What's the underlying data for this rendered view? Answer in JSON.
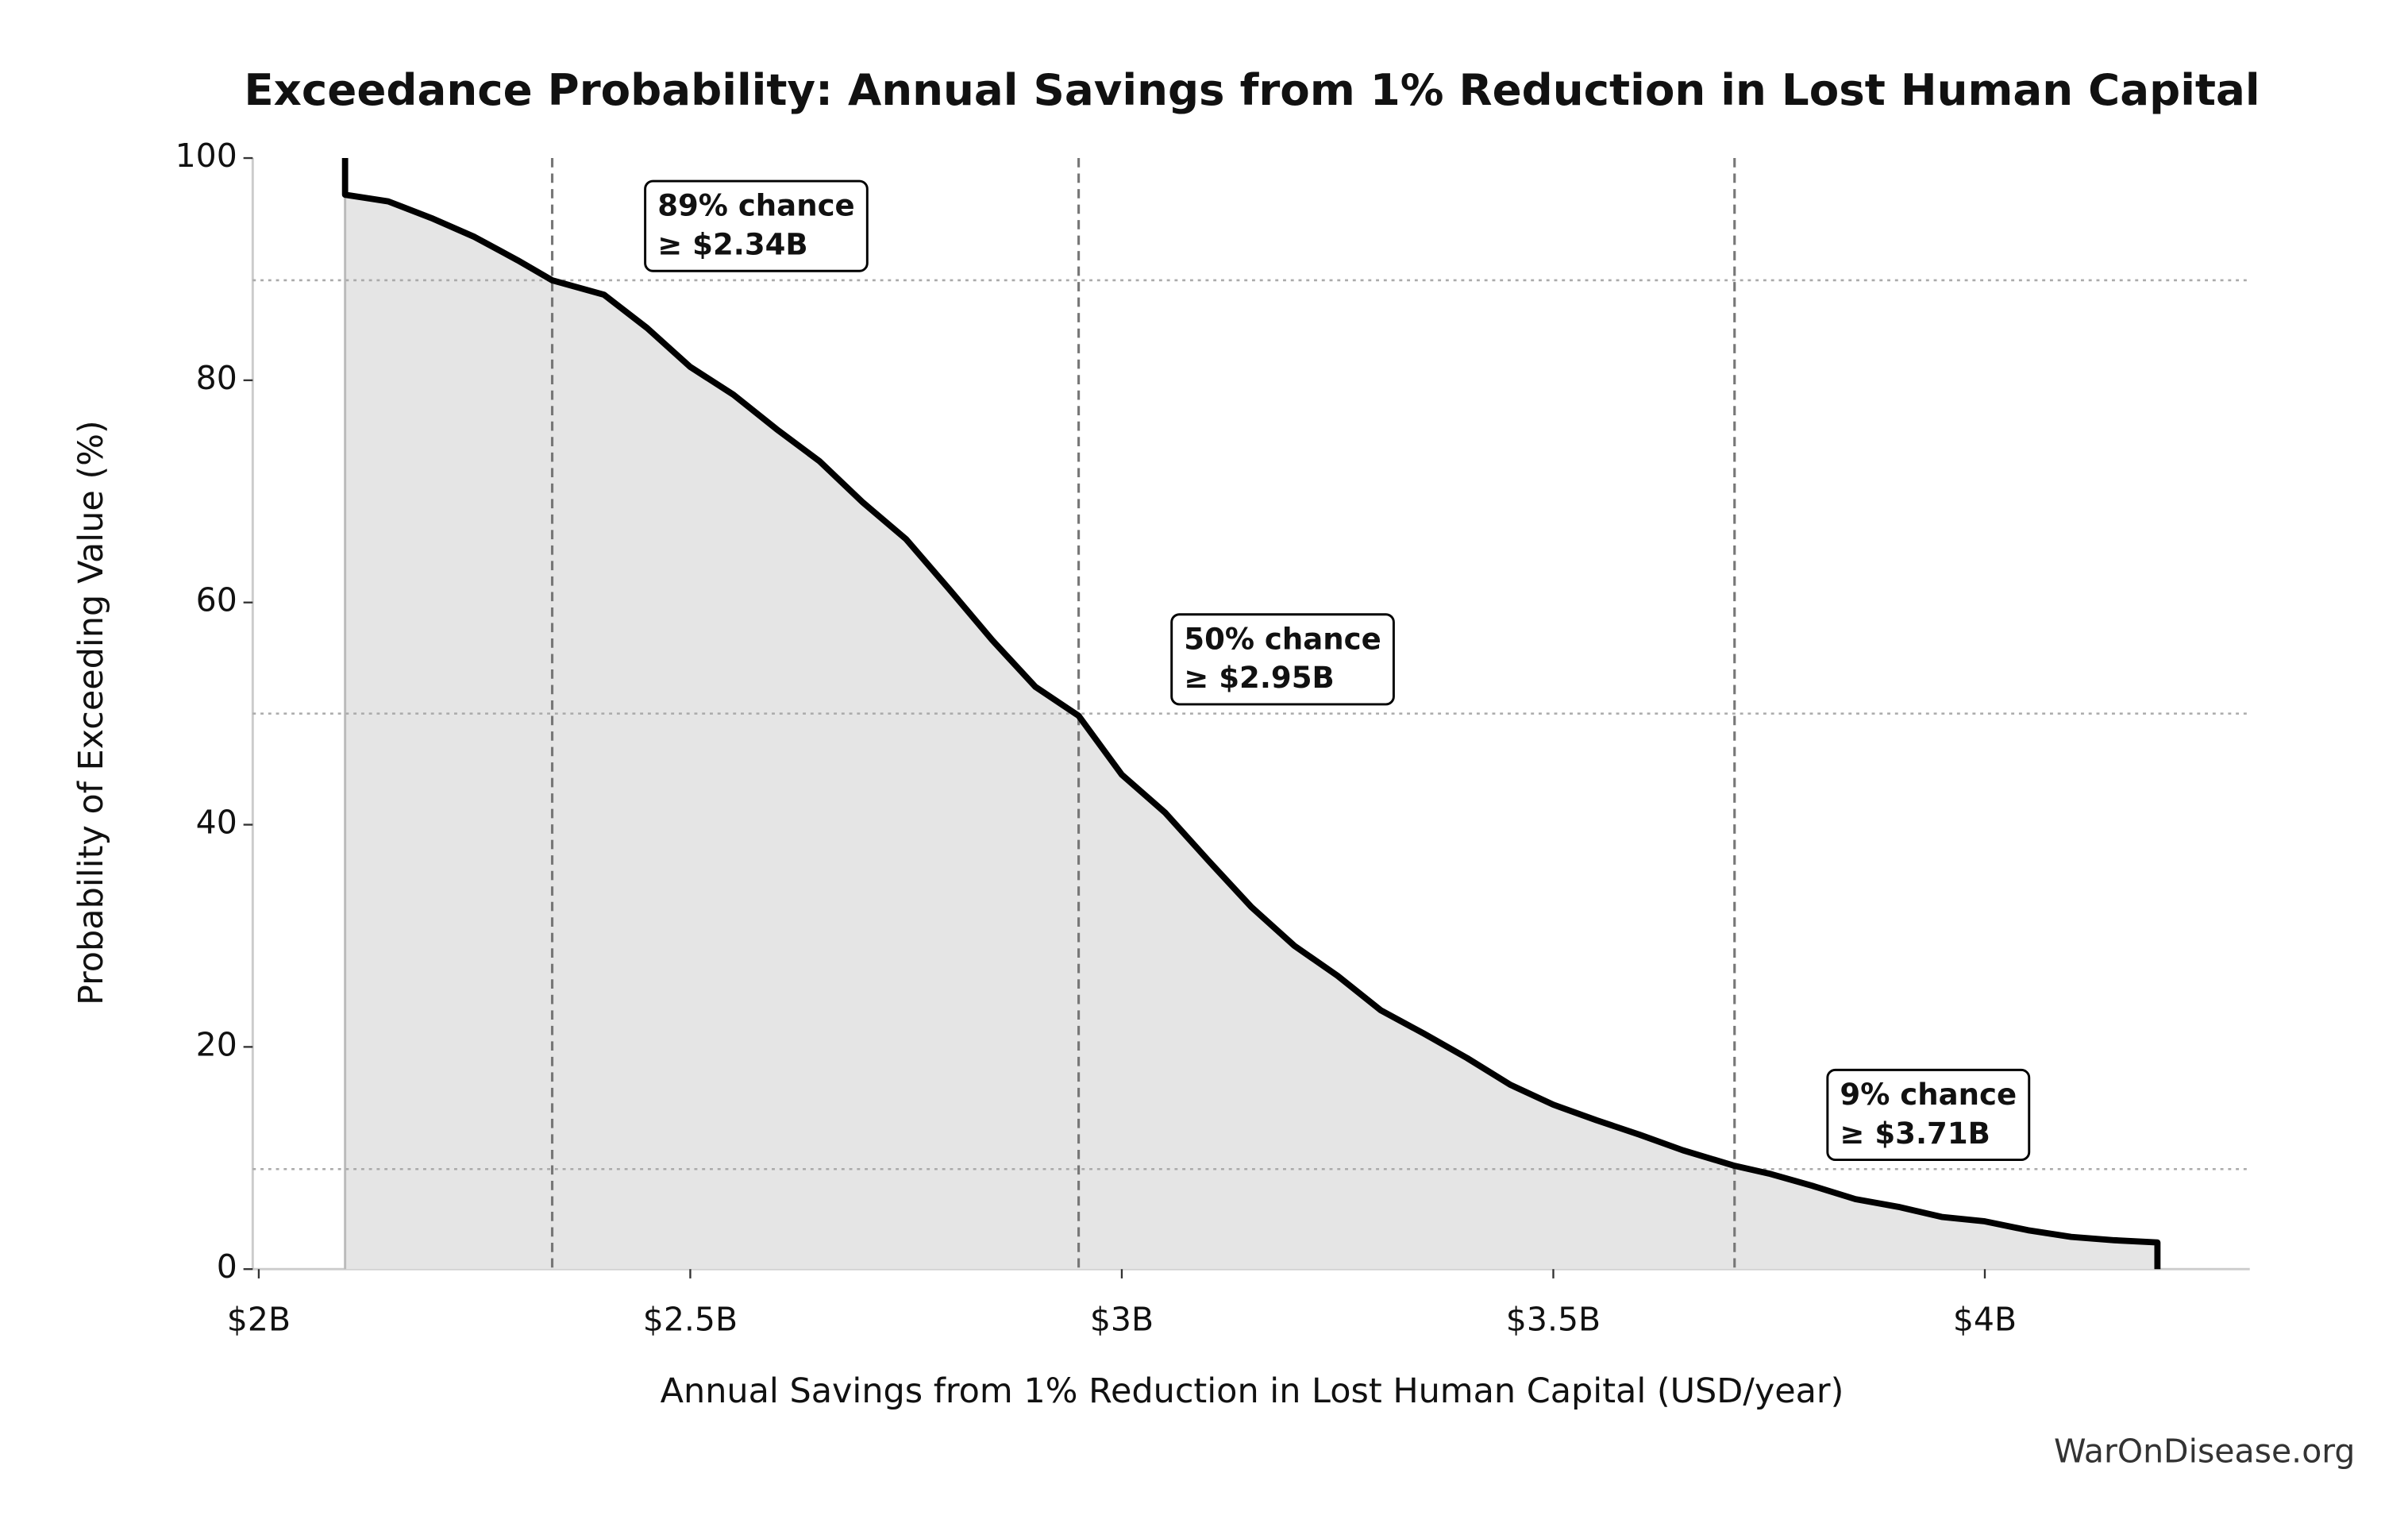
{
  "chart_data": {
    "type": "line",
    "title": "Exceedance Probability: Annual Savings from 1% Reduction in Lost Human Capital",
    "xlabel": "Annual Savings from 1% Reduction in Lost Human Capital (USD/year)",
    "ylabel": "Probability of Exceeding Value (%)",
    "footer": "WarOnDisease.org",
    "x": [
      2.1,
      2.1,
      2.15,
      2.2,
      2.25,
      2.3,
      2.34,
      2.4,
      2.45,
      2.5,
      2.55,
      2.6,
      2.65,
      2.7,
      2.75,
      2.8,
      2.85,
      2.9,
      2.95,
      3.0,
      3.05,
      3.1,
      3.15,
      3.2,
      3.25,
      3.3,
      3.35,
      3.4,
      3.45,
      3.5,
      3.55,
      3.6,
      3.65,
      3.71,
      3.75,
      3.8,
      3.85,
      3.9,
      3.95,
      4.0,
      4.05,
      4.1,
      4.15,
      4.2,
      4.2
    ],
    "series": [
      {
        "color": "#000000",
        "fill": "#e5e5e5",
        "values": [
          100,
          96.7,
          96.1,
          94.6,
          92.9,
          90.8,
          89,
          87.7,
          84.7,
          81.2,
          78.7,
          75.6,
          72.7,
          69.0,
          65.7,
          61.2,
          56.6,
          52.4,
          49.8,
          44.5,
          41.1,
          36.8,
          32.6,
          29.1,
          26.4,
          23.3,
          21.2,
          19.0,
          16.6,
          14.8,
          13.4,
          12.1,
          10.7,
          9.3,
          8.6,
          7.5,
          6.3,
          5.6,
          4.7,
          4.3,
          3.5,
          2.9,
          2.6,
          2.4,
          0
        ]
      }
    ],
    "thresholds": [
      {
        "value": 2.34,
        "probability": 89,
        "lines": [
          "89% chance",
          "≥ $2.34B"
        ]
      },
      {
        "value": 2.95,
        "probability": 50,
        "lines": [
          "50% chance",
          "≥ $2.95B"
        ]
      },
      {
        "value": 3.71,
        "probability": 9,
        "lines": [
          "9% chance",
          "≥ $3.71B"
        ]
      }
    ],
    "xlim": [
      1.993,
      4.307
    ],
    "ylim": [
      0,
      100
    ],
    "xticks": [
      {
        "value": 2,
        "label": "$2B"
      },
      {
        "value": 2.5,
        "label": "$2.5B"
      },
      {
        "value": 3,
        "label": "$3B"
      },
      {
        "value": 3.5,
        "label": "$3.5B"
      },
      {
        "value": 4,
        "label": "$4B"
      }
    ],
    "yticks": [
      0,
      20,
      40,
      60,
      80,
      100
    ]
  }
}
